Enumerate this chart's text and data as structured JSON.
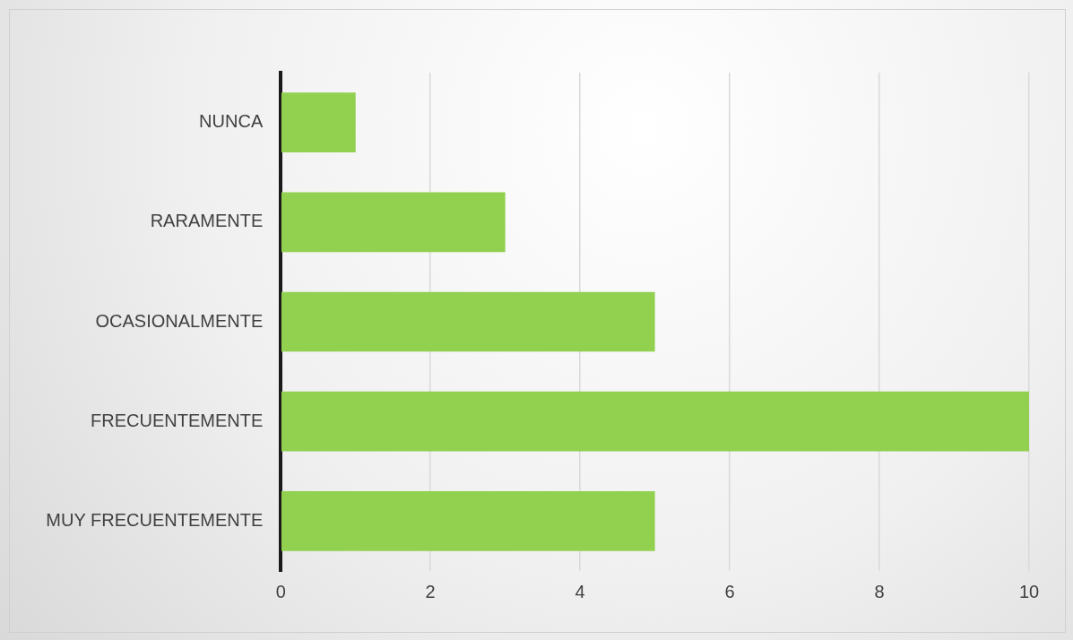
{
  "chart_data": {
    "type": "bar",
    "orientation": "horizontal",
    "categories": [
      "NUNCA",
      "RARAMENTE",
      "OCASIONALMENTE",
      "FRECUENTEMENTE",
      "MUY FRECUENTEMENTE"
    ],
    "values": [
      1,
      3,
      5,
      10,
      5
    ],
    "color": "#92d050",
    "xlim": [
      0,
      10
    ],
    "xticks": [
      0,
      2,
      4,
      6,
      8,
      10
    ],
    "grid": "x"
  }
}
